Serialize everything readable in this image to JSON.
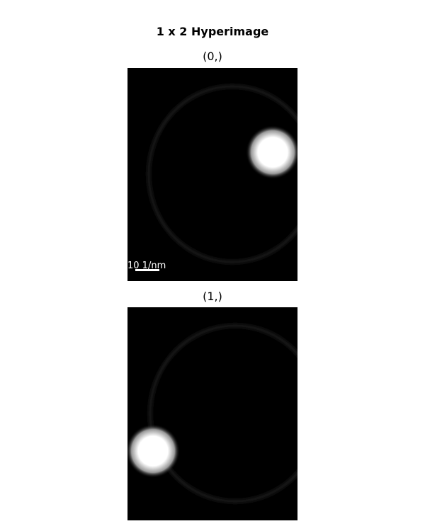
{
  "figure": {
    "title": "1 x 2 Hyperimage"
  },
  "panels": [
    {
      "index_label": "(0,)",
      "scalebar": {
        "label": "10 1/nm"
      }
    },
    {
      "index_label": "(1,)"
    }
  ],
  "colors": {
    "background": "#000000",
    "ring": "#141414",
    "spot": "#ffffff",
    "scalebar": "#ffffff"
  }
}
